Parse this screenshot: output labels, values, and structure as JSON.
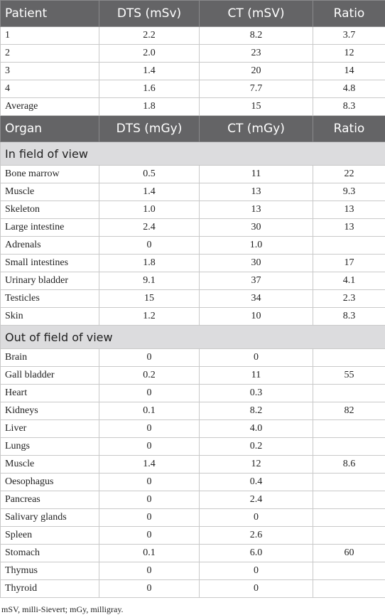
{
  "table1": {
    "header": [
      "Patient",
      "DTS (mSv)",
      "CT (mSV)",
      "Ratio"
    ],
    "rows": [
      [
        "1",
        "2.2",
        "8.2",
        "3.7"
      ],
      [
        "2",
        "2.0",
        "23",
        "12"
      ],
      [
        "3",
        "1.4",
        "20",
        "14"
      ],
      [
        "4",
        "1.6",
        "7.7",
        "4.8"
      ],
      [
        "Average",
        "1.8",
        "15",
        "8.3"
      ]
    ]
  },
  "table2": {
    "header": [
      "Organ",
      "DTS (mGy)",
      "CT (mGy)",
      "Ratio"
    ],
    "sections": [
      {
        "title": "In field of view",
        "rows": [
          [
            "Bone marrow",
            "0.5",
            "11",
            "22"
          ],
          [
            "Muscle",
            "1.4",
            "13",
            "9.3"
          ],
          [
            "Skeleton",
            "1.0",
            "13",
            "13"
          ],
          [
            "Large intestine",
            "2.4",
            "30",
            "13"
          ],
          [
            "Adrenals",
            "0",
            "1.0",
            null
          ],
          [
            "Small intestines",
            "1.8",
            "30",
            "17"
          ],
          [
            "Urinary bladder",
            "9.1",
            "37",
            "4.1"
          ],
          [
            "Testicles",
            "15",
            "34",
            "2.3"
          ],
          [
            "Skin",
            "1.2",
            "10",
            "8.3"
          ]
        ]
      },
      {
        "title": "Out of field of view",
        "rows": [
          [
            "Brain",
            "0",
            "0",
            null
          ],
          [
            "Gall bladder",
            "0.2",
            "11",
            "55"
          ],
          [
            "Heart",
            "0",
            "0.3",
            null
          ],
          [
            "Kidneys",
            "0.1",
            "8.2",
            "82"
          ],
          [
            "Liver",
            "0",
            "4.0",
            null
          ],
          [
            "Lungs",
            "0",
            "0.2",
            null
          ],
          [
            "Muscle",
            "1.4",
            "12",
            "8.6"
          ],
          [
            "Oesophagus",
            "0",
            "0.4",
            null
          ],
          [
            "Pancreas",
            "0",
            "2.4",
            null
          ],
          [
            "Salivary glands",
            "0",
            "0",
            null
          ],
          [
            "Spleen",
            "0",
            "2.6",
            null
          ],
          [
            "Stomach",
            "0.1",
            "6.0",
            "60"
          ],
          [
            "Thymus",
            "0",
            "0",
            null
          ],
          [
            "Thyroid",
            "0",
            "0",
            null
          ]
        ]
      }
    ]
  },
  "footnote": "mSV, milli-Sievert; mGy, milligray."
}
